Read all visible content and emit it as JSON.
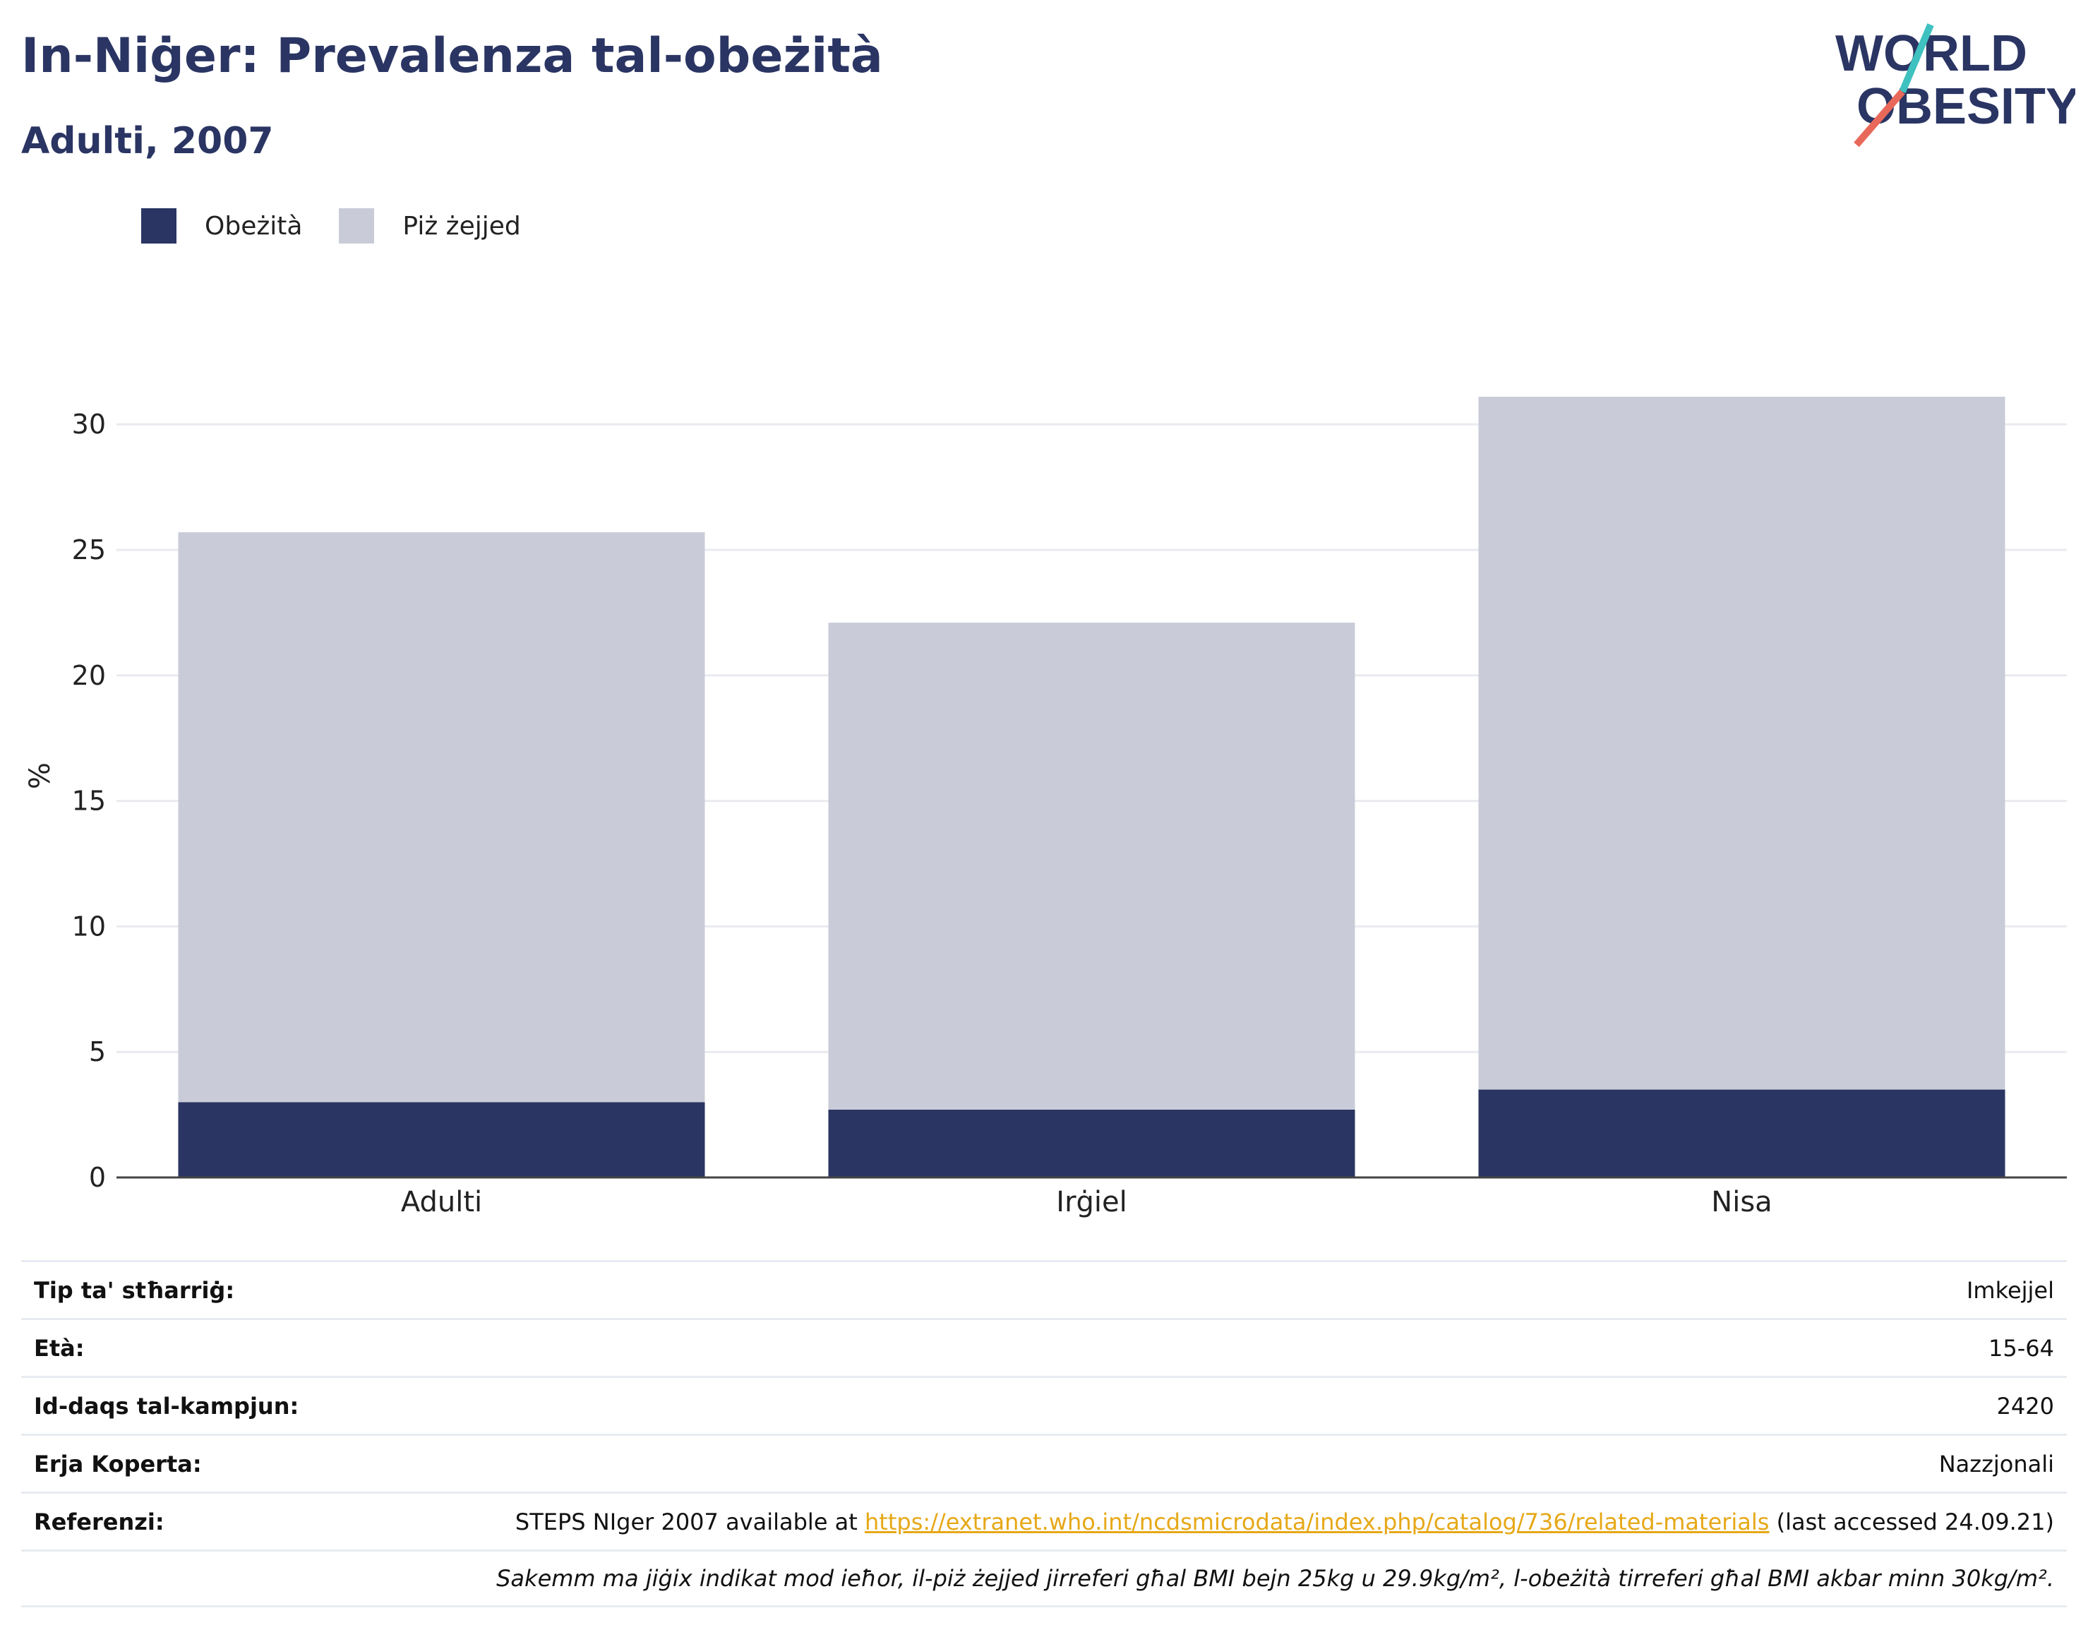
{
  "header": {
    "title": "In-Niġer: Prevalenza tal-obeżità",
    "subtitle": "Adulti, 2007"
  },
  "logo": {
    "line1": "WORLD",
    "line2": "OBESITY",
    "colors": {
      "text": "#2a3563",
      "accent_red": "#e8685a",
      "accent_teal": "#3fc1c0"
    }
  },
  "chart_data": {
    "type": "bar",
    "stacked": true,
    "categories": [
      "Adulti",
      "Irġiel",
      "Nisa"
    ],
    "series": [
      {
        "name": "Obeżità",
        "values": [
          3.0,
          2.7,
          3.5
        ],
        "color": "#2a3563"
      },
      {
        "name": "Piż żejjed",
        "values": [
          22.7,
          19.4,
          27.6
        ],
        "color": "#c9ccd8"
      }
    ],
    "ylabel": "%",
    "ylim": [
      0,
      32
    ],
    "yticks": [
      0,
      5,
      10,
      15,
      20,
      25,
      30
    ],
    "grid": true,
    "legend": "top-left"
  },
  "info": {
    "rows": [
      {
        "label": "Tip ta' stħarriġ:",
        "value": "Imkejjel"
      },
      {
        "label": "Età:",
        "value": "15-64"
      },
      {
        "label": "Id-daqs tal-kampjun:",
        "value": "2420"
      },
      {
        "label": "Erja Koperta:",
        "value": "Nazzjonali"
      }
    ],
    "reference": {
      "label": "Referenzi:",
      "prefix": "STEPS NIger 2007 available at ",
      "link": "https://extranet.who.int/ncdsmicrodata/index.php/catalog/736/related-materials",
      "suffix": " (last accessed 24.09.21)"
    },
    "note": "Sakemm ma jiġix indikat mod ieħor, il-piż żejjed jirreferi għal BMI bejn 25kg u 29.9kg/m², l-obeżità tirreferi għal BMI akbar minn 30kg/m²."
  }
}
